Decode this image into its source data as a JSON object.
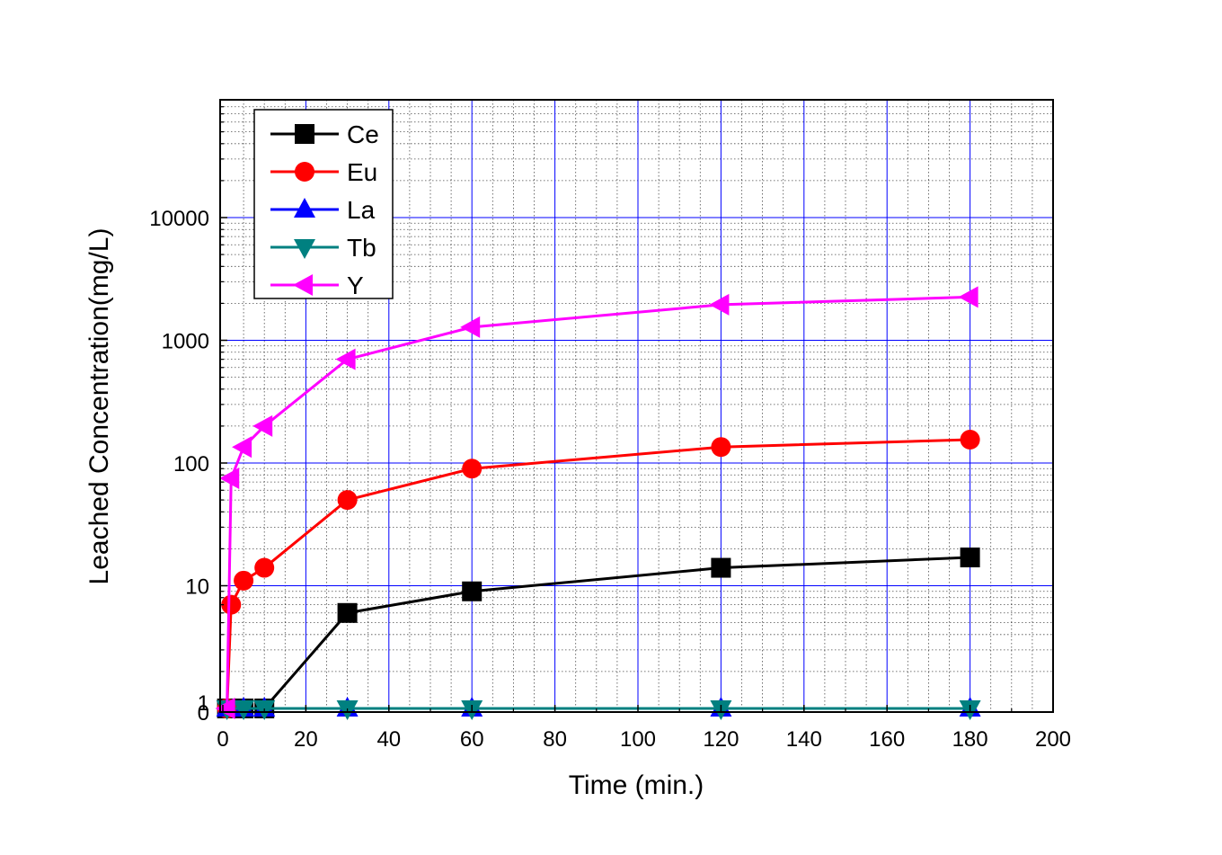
{
  "chart_data": {
    "type": "line",
    "xlabel": "Time (min.)",
    "ylabel": "Leached Concentration(mg/L)",
    "xlim": [
      0,
      200
    ],
    "x_ticks": [
      0,
      20,
      40,
      60,
      80,
      100,
      120,
      140,
      160,
      180,
      200
    ],
    "y_scale": "log",
    "y_ticks": [
      {
        "value": 0,
        "label": "0"
      },
      {
        "value": 1,
        "label": "1"
      },
      {
        "value": 10,
        "label": "10"
      },
      {
        "value": 100,
        "label": "100"
      },
      {
        "value": 1000,
        "label": "1000"
      },
      {
        "value": 10000,
        "label": "10000"
      }
    ],
    "grid": true,
    "legend_position": "top-left",
    "series": [
      {
        "name": "Ce",
        "color": "#000000",
        "marker": "square",
        "x": [
          1,
          2,
          5,
          10,
          30,
          60,
          120,
          180
        ],
        "y": [
          1,
          1,
          1,
          1,
          6,
          9,
          14,
          17
        ]
      },
      {
        "name": "Eu",
        "color": "#ff0000",
        "marker": "circle",
        "x": [
          1,
          2,
          5,
          10,
          30,
          60,
          120,
          180
        ],
        "y": [
          1,
          7,
          11,
          14,
          50,
          90,
          135,
          155
        ]
      },
      {
        "name": "La",
        "color": "#0000ff",
        "marker": "triangle-up",
        "x": [
          1,
          5,
          10,
          30,
          60,
          120,
          180
        ],
        "y": [
          1,
          1,
          1,
          1,
          1,
          1,
          1
        ]
      },
      {
        "name": "Tb",
        "color": "#008080",
        "marker": "triangle-down",
        "x": [
          1,
          5,
          10,
          30,
          60,
          120,
          180
        ],
        "y": [
          1,
          1,
          1,
          1,
          1,
          1,
          1
        ]
      },
      {
        "name": "Y",
        "color": "#ff00ff",
        "marker": "triangle-left",
        "x": [
          1,
          2,
          5,
          10,
          30,
          60,
          120,
          180
        ],
        "y": [
          1,
          75,
          135,
          200,
          700,
          1280,
          1950,
          2250
        ]
      }
    ]
  }
}
